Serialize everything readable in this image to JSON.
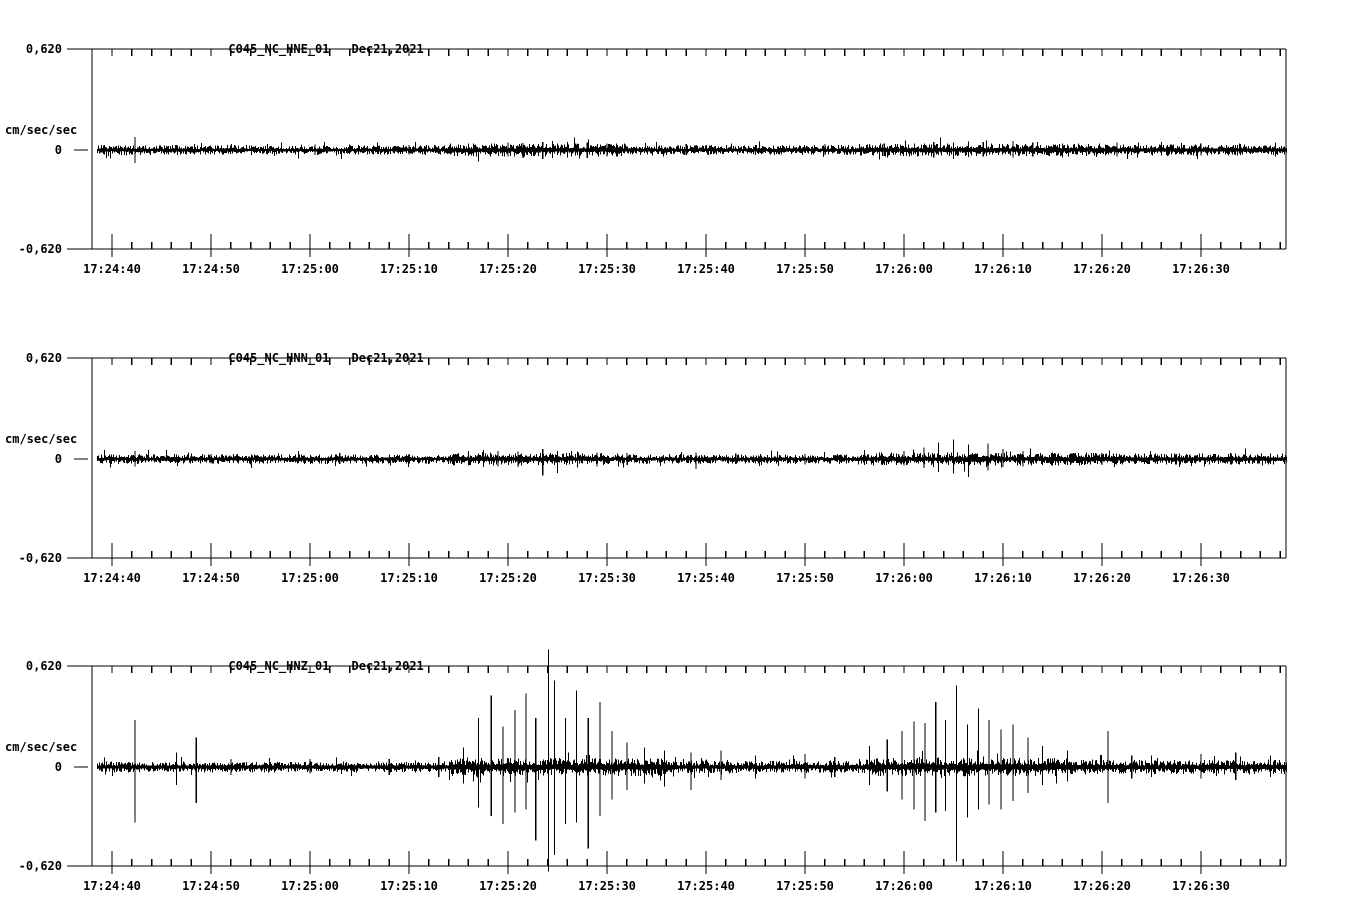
{
  "page": {
    "background_color": "#ffffff",
    "ink_color": "#000000",
    "description": "Three-channel strong-motion seismogram plot, station C045 network NC"
  },
  "chart_data": [
    {
      "type": "line",
      "chart_kind": "seismogram-trace",
      "station_channel": "C045_NC_HNE_01",
      "date": "Dec21,2021",
      "ylabel": "cm/sec/sec",
      "y_tick_labels": [
        "0,620",
        "0",
        "-0,620"
      ],
      "y_tick_values": [
        0.62,
        0,
        -0.62
      ],
      "ylim": [
        -0.62,
        0.62
      ],
      "x_tick_labels": [
        "17:24:40",
        "17:24:50",
        "17:25:00",
        "17:25:10",
        "17:25:20",
        "17:25:30",
        "17:25:40",
        "17:25:50",
        "17:26:00",
        "17:26:10",
        "17:26:20",
        "17:26:30"
      ],
      "x_start_time": "17:24:38",
      "x_end_time": "17:26:39",
      "x_major_tick_interval_s": 10,
      "x_minor_tick_interval_s": 2,
      "grid": false,
      "baseline_value": 0,
      "noise_regions": [
        [
          -2,
          118.6,
          0.02
        ],
        [
          34,
          52,
          0.027
        ],
        [
          75,
          100,
          0.027
        ],
        [
          100,
          118.6,
          0.023
        ]
      ],
      "spikes": [
        [
          2.3,
          0.08,
          0.08
        ],
        [
          20.5,
          0.035,
          0.03
        ],
        [
          30,
          0.03,
          0.028
        ],
        [
          36.5,
          0.04,
          0.036
        ],
        [
          40,
          0.046,
          0.04
        ],
        [
          41.5,
          0.042,
          0.048
        ],
        [
          43.5,
          0.05,
          0.056
        ],
        [
          44.5,
          0.056,
          0.05
        ],
        [
          46,
          0.05,
          0.046
        ],
        [
          48,
          0.046,
          0.05
        ],
        [
          50,
          0.04,
          0.04
        ],
        [
          58,
          0.036,
          0.03
        ],
        [
          65,
          0.032,
          0.03
        ],
        [
          72,
          0.036,
          0.03
        ],
        [
          78,
          0.04,
          0.036
        ],
        [
          83,
          0.05,
          0.046
        ],
        [
          85,
          0.046,
          0.056
        ],
        [
          86.5,
          0.052,
          0.044
        ],
        [
          88,
          0.05,
          0.04
        ],
        [
          91,
          0.056,
          0.046
        ],
        [
          93,
          0.046,
          0.04
        ],
        [
          96,
          0.04,
          0.046
        ],
        [
          101.5,
          0.046,
          0.04
        ],
        [
          106,
          0.036,
          0.034
        ],
        [
          110,
          0.04,
          0.035
        ],
        [
          114,
          0.036,
          0.032
        ],
        [
          117.5,
          0.045,
          0.04
        ]
      ]
    },
    {
      "type": "line",
      "chart_kind": "seismogram-trace",
      "station_channel": "C045_NC_HNN_01",
      "date": "Dec21,2021",
      "ylabel": "cm/sec/sec",
      "y_tick_labels": [
        "0,620",
        "0",
        "-0,620"
      ],
      "y_tick_values": [
        0.62,
        0,
        -0.62
      ],
      "ylim": [
        -0.62,
        0.62
      ],
      "x_tick_labels": [
        "17:24:40",
        "17:24:50",
        "17:25:00",
        "17:25:10",
        "17:25:20",
        "17:25:30",
        "17:25:40",
        "17:25:50",
        "17:26:00",
        "17:26:10",
        "17:26:20",
        "17:26:30"
      ],
      "x_start_time": "17:24:38",
      "x_end_time": "17:26:39",
      "x_major_tick_interval_s": 10,
      "x_minor_tick_interval_s": 2,
      "grid": false,
      "baseline_value": 0,
      "noise_regions": [
        [
          -2,
          118.6,
          0.02
        ],
        [
          34,
          50,
          0.026
        ],
        [
          76,
          100,
          0.027
        ],
        [
          100,
          118.6,
          0.023
        ]
      ],
      "spikes": [
        [
          2.3,
          0.05,
          0.046
        ],
        [
          10,
          0.03,
          0.028
        ],
        [
          23,
          0.036,
          0.03
        ],
        [
          30,
          0.03,
          0.03
        ],
        [
          36,
          0.05,
          0.04
        ],
        [
          37.5,
          0.056,
          0.05
        ],
        [
          39,
          0.05,
          0.046
        ],
        [
          41,
          0.046,
          0.05
        ],
        [
          43.5,
          0.06,
          0.1
        ],
        [
          45,
          0.05,
          0.085
        ],
        [
          47,
          0.046,
          0.052
        ],
        [
          49,
          0.04,
          0.045
        ],
        [
          52,
          0.036,
          0.036
        ],
        [
          59,
          0.04,
          0.06
        ],
        [
          63,
          0.034,
          0.032
        ],
        [
          70,
          0.032,
          0.034
        ],
        [
          76,
          0.04,
          0.036
        ],
        [
          80,
          0.05,
          0.04
        ],
        [
          82,
          0.07,
          0.055
        ],
        [
          83.5,
          0.1,
          0.08
        ],
        [
          85,
          0.12,
          0.09
        ],
        [
          86.5,
          0.09,
          0.11
        ],
        [
          88.5,
          0.095,
          0.07
        ],
        [
          90,
          0.06,
          0.05
        ],
        [
          92,
          0.05,
          0.046
        ],
        [
          95,
          0.04,
          0.04
        ],
        [
          100,
          0.036,
          0.036
        ],
        [
          107,
          0.034,
          0.032
        ],
        [
          113,
          0.036,
          0.034
        ],
        [
          117,
          0.034,
          0.032
        ]
      ]
    },
    {
      "type": "line",
      "chart_kind": "seismogram-trace",
      "station_channel": "C045_NC_HNZ_01",
      "date": "Dec21,2021",
      "ylabel": "cm/sec/sec",
      "y_tick_labels": [
        "0,620",
        "0",
        "-0,620"
      ],
      "y_tick_values": [
        0.62,
        0,
        -0.62
      ],
      "ylim": [
        -0.62,
        0.62
      ],
      "x_tick_labels": [
        "17:24:40",
        "17:24:50",
        "17:25:00",
        "17:25:10",
        "17:25:20",
        "17:25:30",
        "17:25:40",
        "17:25:50",
        "17:26:00",
        "17:26:10",
        "17:26:20",
        "17:26:30"
      ],
      "x_start_time": "17:24:38",
      "x_end_time": "17:26:39",
      "x_major_tick_interval_s": 10,
      "x_minor_tick_interval_s": 2,
      "grid": false,
      "baseline_value": 0,
      "noise_regions": [
        [
          -2,
          118.6,
          0.022
        ],
        [
          34,
          56,
          0.038
        ],
        [
          56,
          76,
          0.026
        ],
        [
          76,
          96,
          0.038
        ],
        [
          96,
          118.6,
          0.03
        ]
      ],
      "spikes": [
        [
          2.3,
          0.29,
          0.34
        ],
        [
          6.5,
          0.09,
          0.11
        ],
        [
          8.5,
          0.18,
          0.22
        ],
        [
          12,
          0.05,
          0.05
        ],
        [
          20,
          0.05,
          0.04
        ],
        [
          28,
          0.05,
          0.05
        ],
        [
          33,
          0.06,
          0.06
        ],
        [
          35.5,
          0.12,
          0.1
        ],
        [
          37.0,
          0.3,
          0.25
        ],
        [
          38.3,
          0.44,
          0.3
        ],
        [
          39.5,
          0.25,
          0.35
        ],
        [
          40.7,
          0.35,
          0.28
        ],
        [
          41.8,
          0.45,
          0.26
        ],
        [
          42.8,
          0.3,
          0.45
        ],
        [
          44.1,
          0.72,
          0.64
        ],
        [
          44.7,
          0.53,
          0.54
        ],
        [
          45.8,
          0.3,
          0.35
        ],
        [
          46.9,
          0.47,
          0.34
        ],
        [
          48.1,
          0.3,
          0.5
        ],
        [
          49.3,
          0.4,
          0.3
        ],
        [
          50.5,
          0.22,
          0.2
        ],
        [
          52.0,
          0.15,
          0.14
        ],
        [
          53.8,
          0.12,
          0.1
        ],
        [
          55.8,
          0.1,
          0.12
        ],
        [
          58.5,
          0.09,
          0.14
        ],
        [
          61.5,
          0.1,
          0.08
        ],
        [
          65,
          0.07,
          0.07
        ],
        [
          70,
          0.08,
          0.07
        ],
        [
          73,
          0.06,
          0.06
        ],
        [
          76.5,
          0.13,
          0.11
        ],
        [
          78.3,
          0.17,
          0.15
        ],
        [
          79.8,
          0.22,
          0.2
        ],
        [
          81.0,
          0.28,
          0.26
        ],
        [
          82.1,
          0.27,
          0.33
        ],
        [
          83.2,
          0.4,
          0.28
        ],
        [
          84.2,
          0.29,
          0.27
        ],
        [
          85.3,
          0.5,
          0.58
        ],
        [
          86.4,
          0.26,
          0.31
        ],
        [
          87.5,
          0.36,
          0.26
        ],
        [
          88.6,
          0.29,
          0.23
        ],
        [
          89.8,
          0.23,
          0.26
        ],
        [
          91.0,
          0.26,
          0.21
        ],
        [
          92.5,
          0.18,
          0.16
        ],
        [
          94.0,
          0.13,
          0.11
        ],
        [
          96.5,
          0.1,
          0.09
        ],
        [
          100.6,
          0.22,
          0.22
        ],
        [
          103,
          0.07,
          0.07
        ],
        [
          105,
          0.07,
          0.06
        ],
        [
          110,
          0.08,
          0.07
        ],
        [
          113.5,
          0.09,
          0.08
        ],
        [
          117,
          0.07,
          0.06
        ]
      ]
    }
  ]
}
